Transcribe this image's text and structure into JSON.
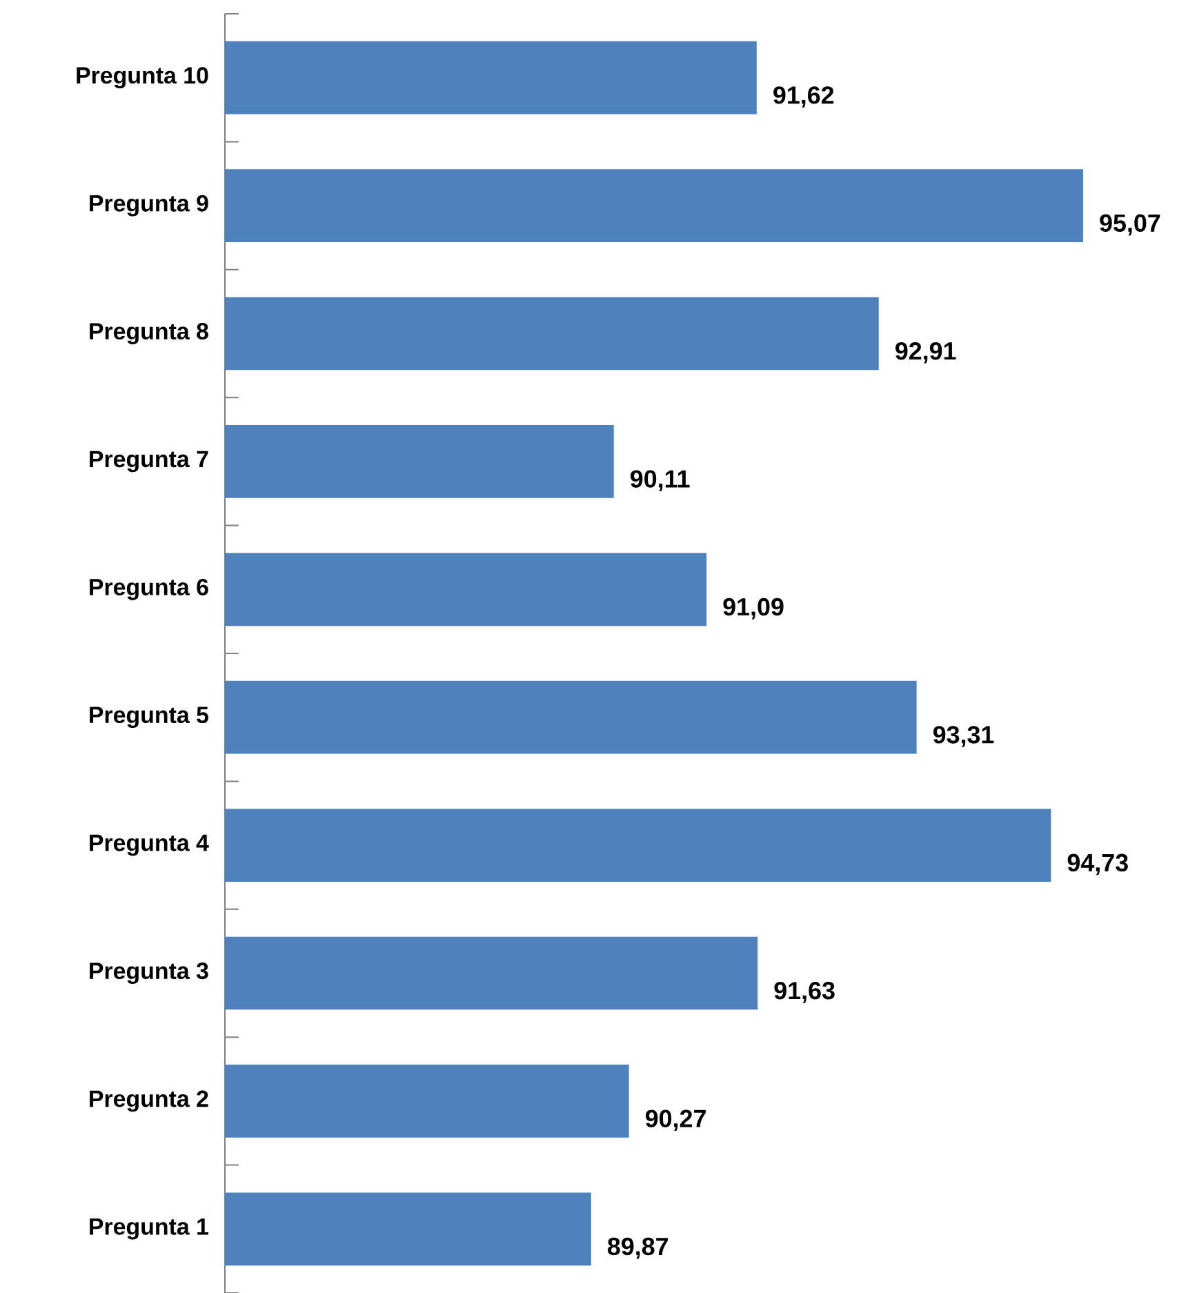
{
  "chart_data": {
    "type": "bar",
    "orientation": "horizontal",
    "categories": [
      "Pregunta 10",
      "Pregunta 9",
      "Pregunta 8",
      "Pregunta 7",
      "Pregunta 6",
      "Pregunta 5",
      "Pregunta 4",
      "Pregunta 3",
      "Pregunta 2",
      "Pregunta 1"
    ],
    "values": [
      91.62,
      95.07,
      92.91,
      90.11,
      91.09,
      93.31,
      94.73,
      91.63,
      90.27,
      89.87
    ],
    "value_labels": [
      "91,62",
      "95,07",
      "92,91",
      "90,11",
      "91,09",
      "93,31",
      "94,73",
      "91,63",
      "90,27",
      "89,87"
    ],
    "color": "#4f81bd",
    "xlim": [
      86,
      95.07
    ],
    "tick_labels": "y"
  }
}
